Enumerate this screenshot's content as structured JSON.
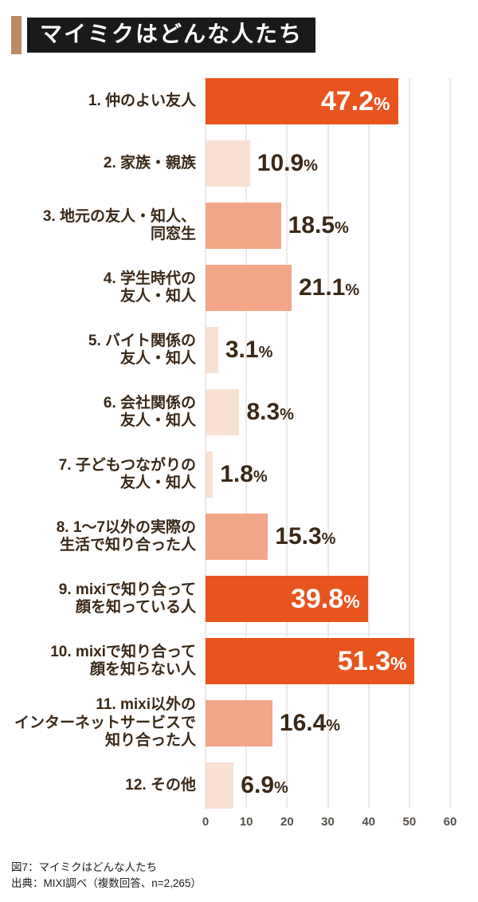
{
  "title": "マイミクはどんな人たち",
  "chart_data": {
    "type": "bar",
    "orientation": "horizontal",
    "title": "マイミクはどんな人たち",
    "unit": "%",
    "xlim": [
      0,
      60
    ],
    "ticks": [
      0,
      10,
      20,
      30,
      40,
      50,
      60
    ],
    "grid": true,
    "colors": {
      "strong": "#e8541e",
      "medium": "#f1a687",
      "light": "#f8e1d3"
    },
    "rows": [
      {
        "lines": [
          "1. 仲のよい友人"
        ],
        "value": 47.2,
        "style": "strong"
      },
      {
        "lines": [
          "2. 家族・親族"
        ],
        "value": 10.9,
        "style": "light"
      },
      {
        "lines": [
          "3. 地元の友人・知人、",
          "同窓生"
        ],
        "value": 18.5,
        "style": "medium"
      },
      {
        "lines": [
          "4. 学生時代の",
          "友人・知人"
        ],
        "value": 21.1,
        "style": "medium"
      },
      {
        "lines": [
          "5. バイト関係の",
          "友人・知人"
        ],
        "value": 3.1,
        "style": "light"
      },
      {
        "lines": [
          "6. 会社関係の",
          "友人・知人"
        ],
        "value": 8.3,
        "style": "light"
      },
      {
        "lines": [
          "7. 子どもつながりの",
          "友人・知人"
        ],
        "value": 1.8,
        "style": "light"
      },
      {
        "lines": [
          "8. 1〜7以外の実際の",
          "生活で知り合った人"
        ],
        "value": 15.3,
        "style": "medium"
      },
      {
        "lines": [
          "9. mixiで知り合って",
          "顔を知っている人"
        ],
        "value": 39.8,
        "style": "strong"
      },
      {
        "lines": [
          "10. mixiで知り合って",
          "顔を知らない人"
        ],
        "value": 51.3,
        "style": "strong"
      },
      {
        "lines": [
          "11. mixi以外の",
          "インターネットサービスで",
          "知り合った人"
        ],
        "value": 16.4,
        "style": "medium"
      },
      {
        "lines": [
          "12. その他"
        ],
        "value": 6.9,
        "style": "light"
      }
    ]
  },
  "caption": {
    "line1": "図7：マイミクはどんな人たち",
    "line2": "出典：MIXI調べ（複数回答、n=2,265）"
  }
}
